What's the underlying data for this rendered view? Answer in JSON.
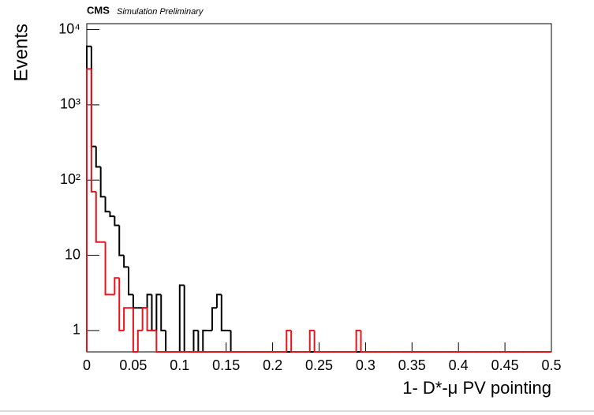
{
  "chart_data": {
    "type": "histogram",
    "log_y": true,
    "title": "CMS",
    "subtitle": "Simulation Preliminary",
    "x_label": "1- D*-μ PV pointing",
    "y_label": "Events",
    "bins": [
      0,
      0.005,
      0.01,
      0.015,
      0.02,
      0.025,
      0.03,
      0.035,
      0.04,
      0.045,
      0.05,
      0.055,
      0.06,
      0.065,
      0.07,
      0.075,
      0.08,
      0.085,
      0.09,
      0.095,
      0.1,
      0.105,
      0.11,
      0.115,
      0.12,
      0.125,
      0.13,
      0.135,
      0.14,
      0.145,
      0.15,
      0.155,
      0.16,
      0.165,
      0.17,
      0.175,
      0.18,
      0.185,
      0.19,
      0.195,
      0.2,
      0.205,
      0.21,
      0.215,
      0.22,
      0.225,
      0.23,
      0.235,
      0.24,
      0.245,
      0.25,
      0.255,
      0.26,
      0.265,
      0.27,
      0.275,
      0.28,
      0.285,
      0.29,
      0.295,
      0.3,
      0.305,
      0.31,
      0.315,
      0.32,
      0.325,
      0.33,
      0.335,
      0.34,
      0.345,
      0.35,
      0.355,
      0.36,
      0.365,
      0.37,
      0.375,
      0.38,
      0.385,
      0.39,
      0.395,
      0.4,
      0.405,
      0.41,
      0.415,
      0.42,
      0.425,
      0.43,
      0.435,
      0.44,
      0.445,
      0.45,
      0.455,
      0.46,
      0.465,
      0.47,
      0.475,
      0.48,
      0.485,
      0.49,
      0.495,
      0.5
    ],
    "series": [
      {
        "color": "#000000",
        "values": [
          6000,
          280,
          150,
          60,
          38,
          33,
          25,
          10,
          7,
          3,
          2,
          2,
          2,
          3,
          1,
          3,
          1,
          0,
          0,
          0,
          4,
          0,
          0,
          1,
          0,
          1,
          1,
          2,
          3,
          1,
          1,
          0,
          0,
          0,
          0,
          0,
          0,
          0,
          0,
          0,
          0,
          0,
          0,
          0,
          0,
          0,
          0,
          0,
          0,
          0,
          0,
          0,
          0,
          0,
          0,
          0,
          0,
          0,
          0,
          0,
          0,
          0,
          0,
          0,
          0,
          0,
          0,
          0,
          0,
          0,
          0,
          0,
          0,
          0,
          0,
          0,
          0,
          0,
          0,
          0,
          0,
          0,
          0,
          0,
          0,
          0,
          0,
          0,
          0,
          0,
          0,
          0,
          0,
          0,
          0,
          0,
          0,
          0,
          0,
          0
        ]
      },
      {
        "color": "#e8141c",
        "values": [
          3000,
          70,
          15,
          15,
          3,
          3,
          5,
          1,
          2,
          2,
          0,
          1,
          2,
          1,
          1,
          0,
          0,
          0,
          0,
          0,
          0,
          0,
          0,
          0,
          0,
          0,
          0,
          0,
          0,
          0,
          0,
          0,
          0,
          0,
          0,
          0,
          0,
          0,
          0,
          0,
          0,
          0,
          0,
          1,
          0,
          0,
          0,
          0,
          1,
          0,
          0,
          0,
          0,
          0,
          0,
          0,
          0,
          0,
          1,
          0,
          0,
          0,
          0,
          0,
          0,
          0,
          0,
          0,
          0,
          0,
          0,
          0,
          0,
          0,
          0,
          0,
          0,
          0,
          0,
          0,
          0,
          0,
          0,
          0,
          0,
          0,
          0,
          0,
          0,
          0,
          0,
          0,
          0,
          0,
          0,
          0,
          0,
          0,
          0,
          0
        ]
      }
    ],
    "xlim": [
      0,
      0.5
    ],
    "ylim": [
      0.52,
      12000
    ],
    "xticks": [
      0,
      0.05,
      0.1,
      0.15,
      0.2,
      0.25,
      0.3,
      0.35,
      0.4,
      0.45,
      0.5
    ],
    "yticks": [
      1,
      10,
      {
        "value": 100,
        "label": "10²"
      },
      {
        "value": 1000,
        "label": "10³"
      },
      {
        "value": 10000,
        "label": "10⁴"
      }
    ]
  }
}
